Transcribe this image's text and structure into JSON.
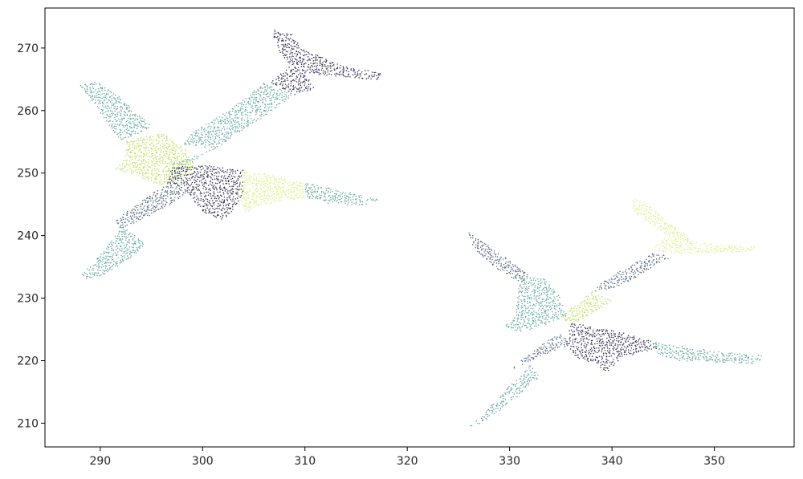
{
  "chart_data": {
    "type": "scatter",
    "title": "",
    "xlabel": "",
    "ylabel": "",
    "xlim": [
      284.6,
      357.8
    ],
    "ylim": [
      206.2,
      276.4
    ],
    "xticks": [
      290,
      300,
      310,
      320,
      330,
      340,
      350
    ],
    "yticks": [
      210,
      220,
      230,
      240,
      250,
      260,
      270
    ],
    "grid": false,
    "legend": "none",
    "colors": {
      "dark_navy": "#2d2a4f",
      "slate_blue": "#4f6680",
      "teal": "#5fa6a0",
      "yellow_green": "#bde05a",
      "pale_yellow": "#dfee7c"
    },
    "point_clouds": [
      {
        "name": "airplane-1",
        "segments": [
          {
            "part": "tail",
            "color": "dark_navy",
            "outline": [
              [
                307,
                273
              ],
              [
                309,
                272
              ],
              [
                309.5,
                270
              ],
              [
                311,
                269
              ],
              [
                313,
                267.5
              ],
              [
                317.5,
                266
              ],
              [
                317,
                264.8
              ],
              [
                313,
                265.5
              ],
              [
                310,
                266
              ],
              [
                311,
                263.5
              ],
              [
                309,
                262.5
              ],
              [
                306.5,
                264.5
              ],
              [
                308.5,
                267
              ],
              [
                307.5,
                269.5
              ],
              [
                306.8,
                272.5
              ]
            ]
          },
          {
            "part": "rear-fuselage",
            "color": "teal",
            "outline": [
              [
                306,
                264.5
              ],
              [
                309,
                262.5
              ],
              [
                306,
                259
              ],
              [
                303,
                256
              ],
              [
                301,
                254
              ],
              [
                298,
                254.5
              ],
              [
                299,
                256.5
              ],
              [
                303,
                260.5
              ]
            ]
          },
          {
            "part": "center-fuselage",
            "color": "teal",
            "outline": [
              [
                301.5,
                254
              ],
              [
                303,
                256
              ],
              [
                300,
                253
              ],
              [
                298,
                250.5
              ],
              [
                297,
                251.5
              ]
            ]
          },
          {
            "part": "left-wing-tip",
            "color": "teal",
            "outline": [
              [
                288,
                264
              ],
              [
                289.5,
                264.8
              ],
              [
                292,
                262
              ],
              [
                295,
                257.5
              ],
              [
                294,
                256.5
              ],
              [
                292,
                255
              ],
              [
                290.5,
                258.5
              ]
            ]
          },
          {
            "part": "left-wing-root",
            "color": "yellow_green",
            "outline": [
              [
                292.5,
                255
              ],
              [
                296,
                256.5
              ],
              [
                298.5,
                253.5
              ],
              [
                299.5,
                250.5
              ],
              [
                298,
                249
              ],
              [
                296,
                248
              ],
              [
                293.5,
                249.5
              ],
              [
                291.5,
                250.5
              ],
              [
                292.5,
                252.5
              ]
            ]
          },
          {
            "part": "right-wing-root",
            "color": "dark_navy",
            "outline": [
              [
                297,
                251
              ],
              [
                301,
                251.2
              ],
              [
                304,
                250.5
              ],
              [
                304,
                247
              ],
              [
                303,
                244
              ],
              [
                302,
                242.5
              ],
              [
                300,
                243.8
              ],
              [
                298.5,
                247
              ],
              [
                296.5,
                248.5
              ]
            ]
          },
          {
            "part": "right-wing-mid",
            "color": "pale_yellow",
            "outline": [
              [
                303.8,
                250.5
              ],
              [
                307,
                249.5
              ],
              [
                310,
                248.5
              ],
              [
                310,
                246
              ],
              [
                306,
                245
              ],
              [
                304,
                243.5
              ],
              [
                303.5,
                246.5
              ]
            ]
          },
          {
            "part": "right-wing-tip",
            "color": "teal",
            "outline": [
              [
                310,
                248.5
              ],
              [
                314,
                247
              ],
              [
                317.3,
                245.8
              ],
              [
                316,
                244.8
              ],
              [
                312,
                245.2
              ],
              [
                310,
                246
              ]
            ]
          },
          {
            "part": "forward-fuselage",
            "color": "slate_blue",
            "outline": [
              [
                296.5,
                248.5
              ],
              [
                298.5,
                247
              ],
              [
                297,
                245
              ],
              [
                294,
                242.5
              ],
              [
                292,
                241
              ],
              [
                291.5,
                242.5
              ],
              [
                294,
                245.5
              ]
            ]
          },
          {
            "part": "nose",
            "color": "teal",
            "outline": [
              [
                291.5,
                242.5
              ],
              [
                292,
                241
              ],
              [
                290.5,
                238
              ],
              [
                289,
                235
              ],
              [
                288,
                234
              ],
              [
                288.5,
                233
              ],
              [
                290.5,
                233.8
              ],
              [
                293,
                236.5
              ],
              [
                294.5,
                238.5
              ]
            ]
          }
        ]
      },
      {
        "name": "airplane-2",
        "segments": [
          {
            "part": "tail",
            "color": "pale_yellow",
            "outline": [
              [
                342,
                246
              ],
              [
                344,
                244.5
              ],
              [
                345.5,
                242
              ],
              [
                347,
                240.5
              ],
              [
                348,
                239
              ],
              [
                351,
                238.5
              ],
              [
                354,
                238.2
              ],
              [
                354,
                237.5
              ],
              [
                350,
                237.2
              ],
              [
                347,
                237
              ],
              [
                345.5,
                237
              ],
              [
                344,
                238
              ],
              [
                345.5,
                240
              ],
              [
                343,
                242.5
              ],
              [
                342,
                244
              ]
            ]
          },
          {
            "part": "rear-fuselage",
            "color": "slate_blue",
            "outline": [
              [
                344,
                237.2
              ],
              [
                346,
                236.5
              ],
              [
                345,
                236
              ],
              [
                342,
                233
              ],
              [
                340,
                231.5
              ],
              [
                338,
                231
              ],
              [
                339,
                232.5
              ],
              [
                341.5,
                235
              ]
            ]
          },
          {
            "part": "center-fuselage",
            "color": "yellow_green",
            "outline": [
              [
                338,
                231
              ],
              [
                340,
                229.5
              ],
              [
                339,
                228.5
              ],
              [
                337,
                226.5
              ],
              [
                336,
                225.5
              ],
              [
                335,
                227
              ]
            ]
          },
          {
            "part": "left-wing-tip",
            "color": "slate_blue",
            "outline": [
              [
                326,
                240.5
              ],
              [
                327.5,
                239
              ],
              [
                330,
                236
              ],
              [
                332,
                233.5
              ],
              [
                331,
                232.5
              ],
              [
                328.5,
                235
              ],
              [
                326.5,
                238
              ]
            ]
          },
          {
            "part": "left-wing-root",
            "color": "teal",
            "outline": [
              [
                331,
                233.5
              ],
              [
                333.5,
                233
              ],
              [
                335,
                230
              ],
              [
                335.5,
                227
              ],
              [
                334,
                226
              ],
              [
                331,
                224.5
              ],
              [
                329.5,
                225.5
              ],
              [
                330.5,
                227
              ]
            ]
          },
          {
            "part": "right-wing-root",
            "color": "dark_navy",
            "outline": [
              [
                336,
                226
              ],
              [
                338,
                225.5
              ],
              [
                341,
                224.5
              ],
              [
                344,
                223
              ],
              [
                344.5,
                222
              ],
              [
                341,
                220.5
              ],
              [
                339.5,
                218
              ],
              [
                338.5,
                219.5
              ],
              [
                336.5,
                220.5
              ],
              [
                335.5,
                222.5
              ]
            ]
          },
          {
            "part": "right-wing-tip",
            "color": "teal",
            "outline": [
              [
                344,
                223
              ],
              [
                347,
                222.3
              ],
              [
                350,
                221.5
              ],
              [
                355,
                220.8
              ],
              [
                354,
                219.5
              ],
              [
                350,
                219.7
              ],
              [
                346.5,
                220
              ],
              [
                344.5,
                221
              ]
            ]
          },
          {
            "part": "forward-fuselage",
            "color": "slate_blue",
            "outline": [
              [
                335,
                224.5
              ],
              [
                336,
                222.5
              ],
              [
                333.5,
                221
              ],
              [
                331.5,
                219.5
              ],
              [
                330,
                218.5
              ],
              [
                331.5,
                220.5
              ],
              [
                333.5,
                223
              ]
            ]
          },
          {
            "part": "nose",
            "color": "teal",
            "outline": [
              [
                331.5,
                220
              ],
              [
                332,
                219
              ],
              [
                330,
                216
              ],
              [
                328,
                212.5
              ],
              [
                326.5,
                210
              ],
              [
                326,
                209.5
              ],
              [
                327,
                209.8
              ],
              [
                329,
                212
              ],
              [
                331,
                214.5
              ],
              [
                333,
                217.5
              ]
            ]
          }
        ]
      }
    ]
  }
}
